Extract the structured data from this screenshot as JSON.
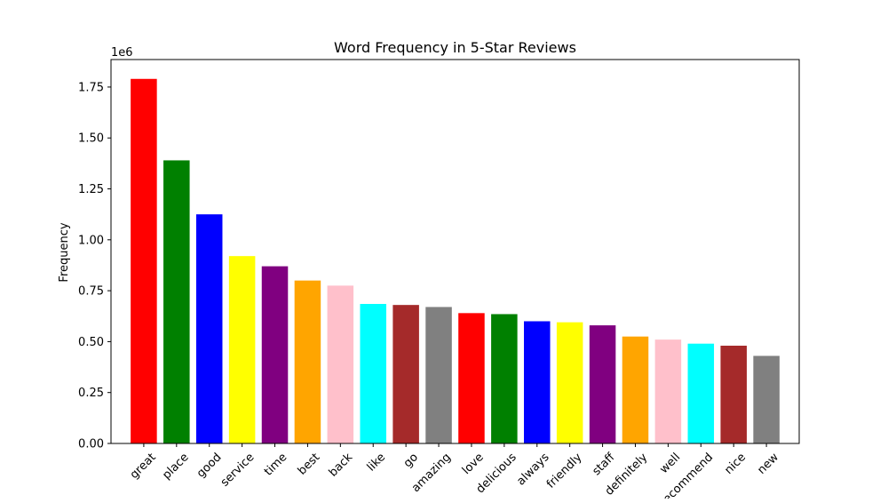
{
  "chart_data": {
    "type": "bar",
    "title": "Word Frequency in 5-Star Reviews",
    "xlabel": "",
    "ylabel": "Frequency",
    "y_multiplier": "1e6",
    "ylim": [
      0,
      1.885
    ],
    "yticks": [
      0.0,
      0.25,
      0.5,
      0.75,
      1.0,
      1.25,
      1.5,
      1.75
    ],
    "ytick_labels": [
      "0.00",
      "0.25",
      "0.50",
      "0.75",
      "1.00",
      "1.25",
      "1.50",
      "1.75"
    ],
    "categories": [
      "great",
      "place",
      "good",
      "service",
      "time",
      "best",
      "back",
      "like",
      "go",
      "amazing",
      "love",
      "delicious",
      "always",
      "friendly",
      "staff",
      "definitely",
      "well",
      "recommend",
      "nice",
      "new"
    ],
    "values": [
      1.79,
      1.39,
      1.125,
      0.92,
      0.87,
      0.8,
      0.775,
      0.685,
      0.68,
      0.67,
      0.64,
      0.635,
      0.6,
      0.595,
      0.58,
      0.525,
      0.51,
      0.49,
      0.48,
      0.43
    ],
    "colors": [
      "#ff0000",
      "#008000",
      "#0000ff",
      "#ffff00",
      "#800080",
      "#ffa500",
      "#ffc0cb",
      "#00ffff",
      "#a52a2a",
      "#808080",
      "#ff0000",
      "#008000",
      "#0000ff",
      "#ffff00",
      "#800080",
      "#ffa500",
      "#ffc0cb",
      "#00ffff",
      "#a52a2a",
      "#808080"
    ],
    "grid": false,
    "legend": "none"
  }
}
